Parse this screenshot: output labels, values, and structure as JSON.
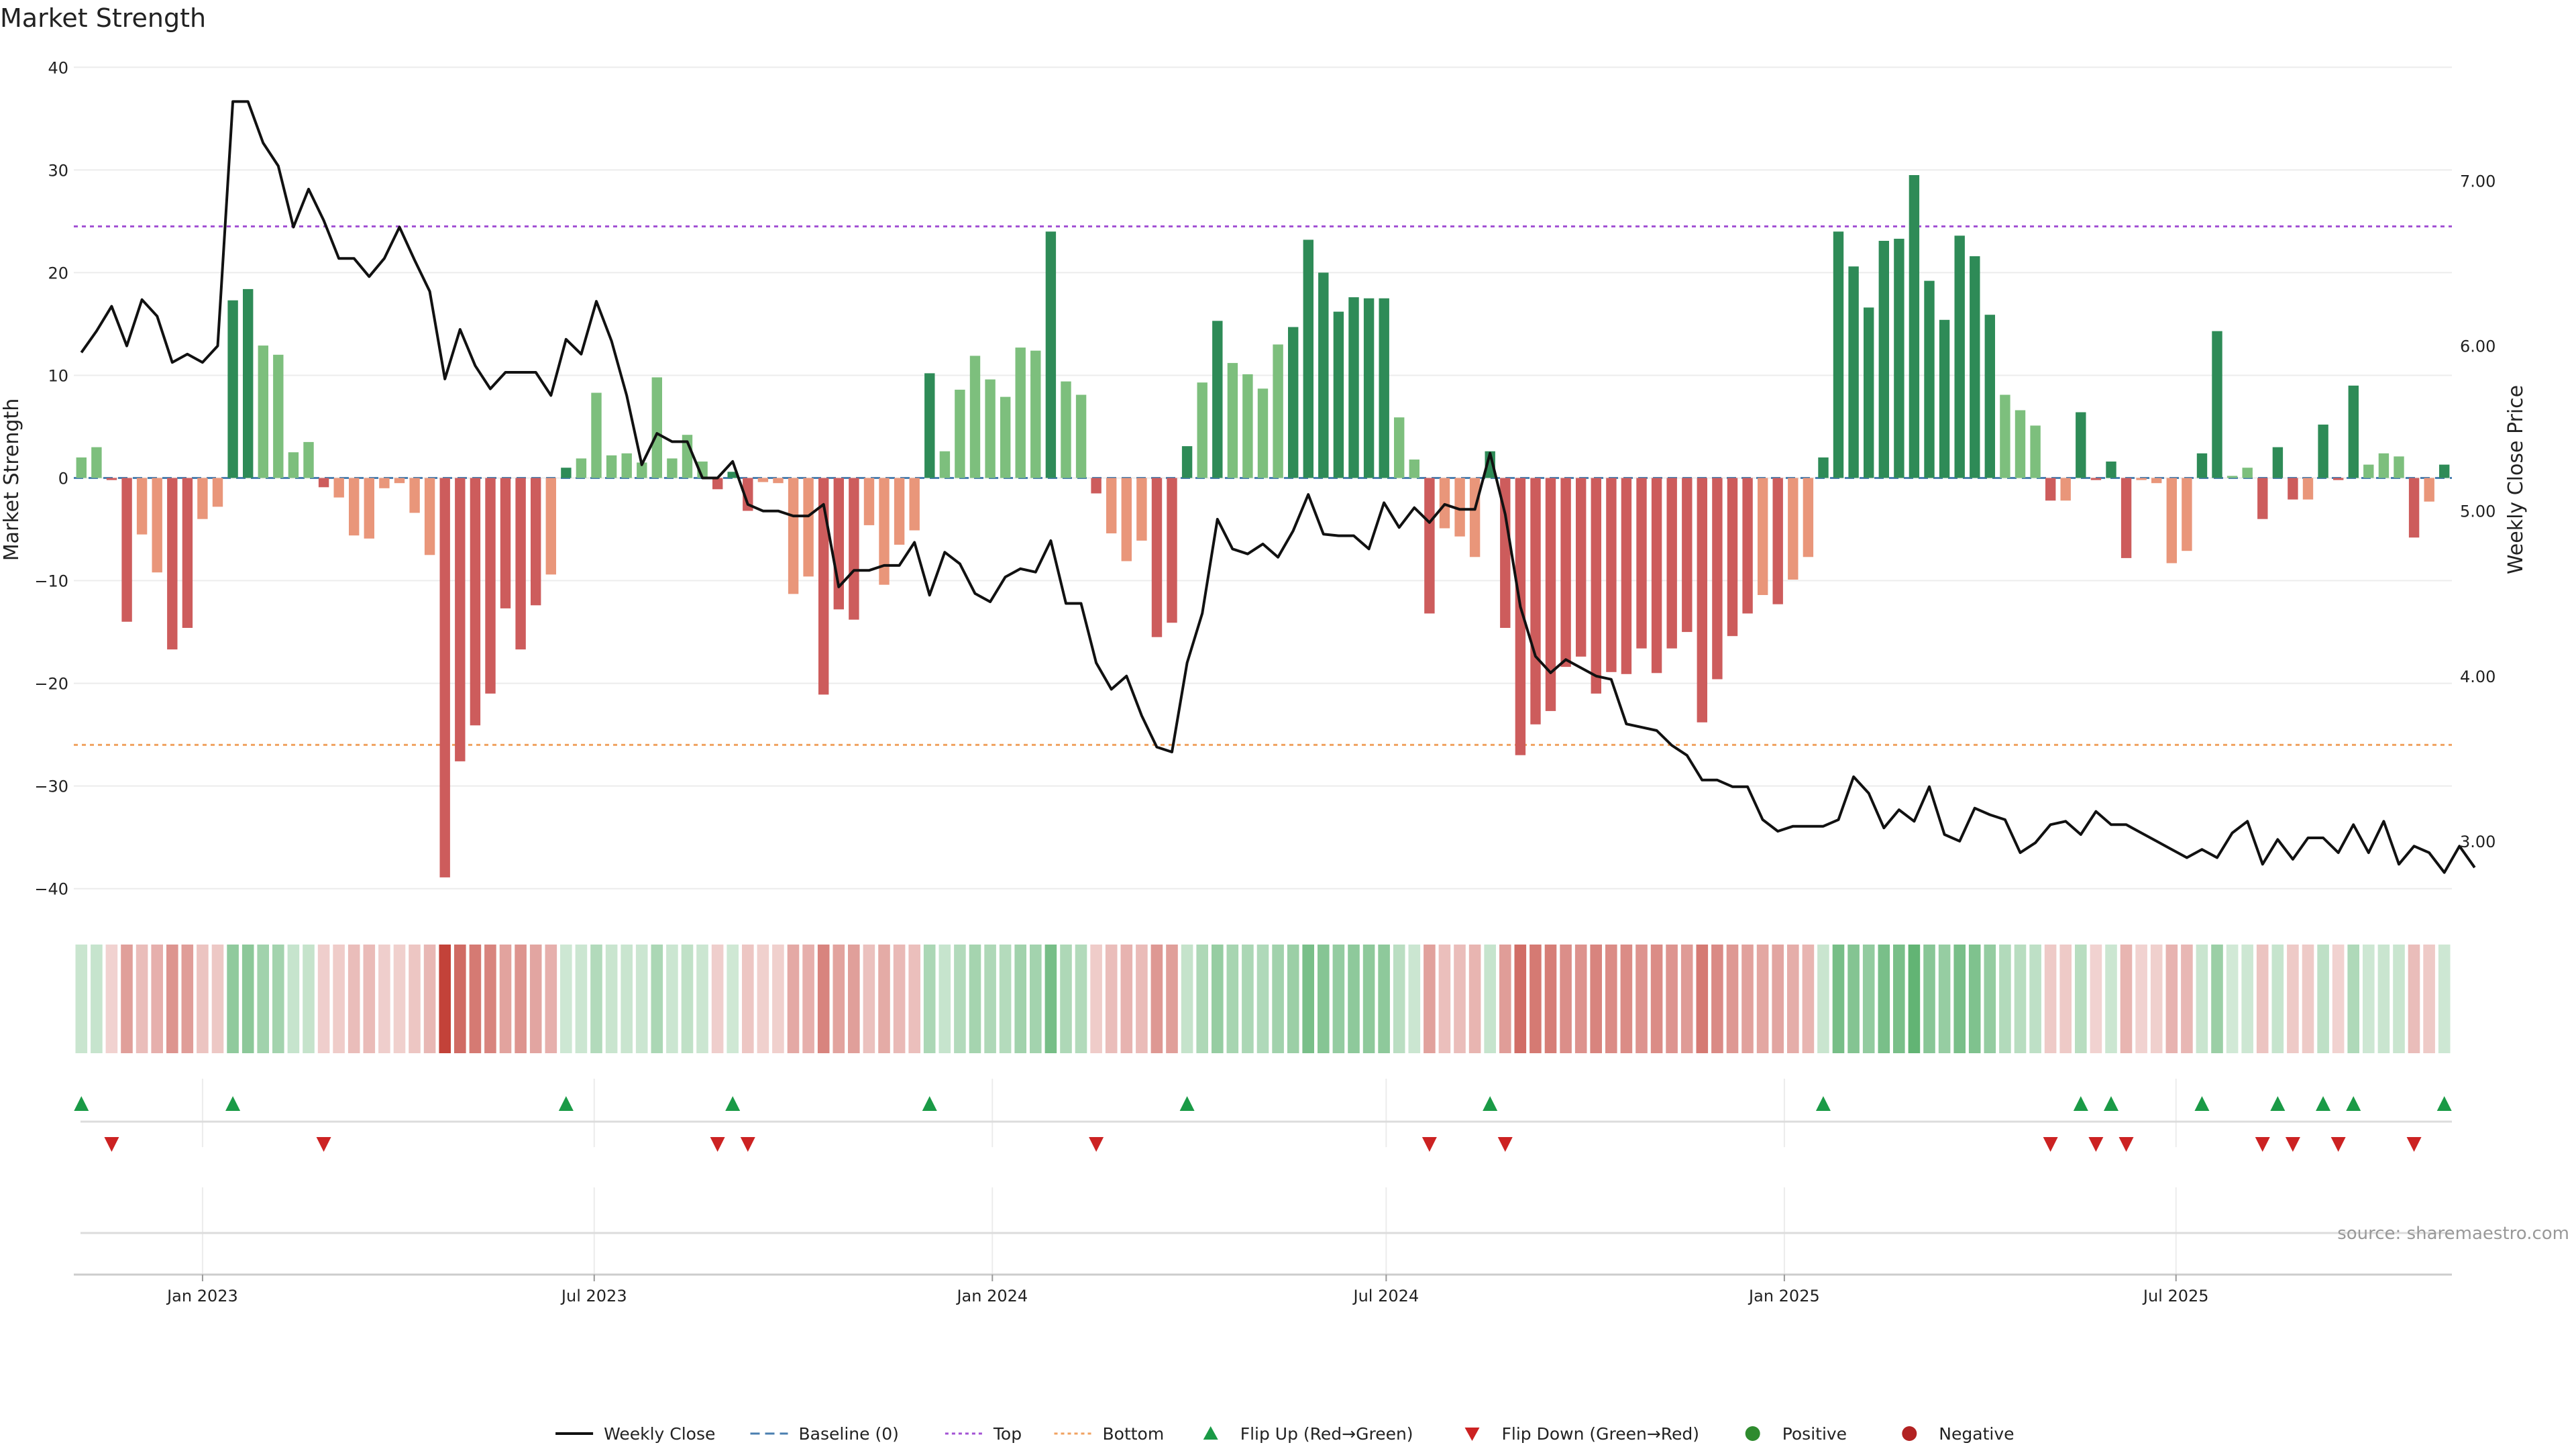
{
  "chart_data": {
    "type": "bar",
    "title": "Market Strength",
    "ylabel": "Market Strength",
    "y2label": "Weekly Close Price",
    "ylim": [
      -41,
      41
    ],
    "y2lim": [
      2.65,
      7.75
    ],
    "yticks": [
      "40",
      "30",
      "20",
      "10",
      "0",
      "−10",
      "−20",
      "−30",
      "−40"
    ],
    "y2ticks": [
      "7.00",
      "6.00",
      "5.00",
      "4.00",
      "3.00"
    ],
    "x_start": "2022-11-06",
    "x_interval_days": 7,
    "x_tick_labels": [
      "Jan 2023",
      "Jul 2023",
      "Jan 2024",
      "Jul 2024",
      "Jan 2025",
      "Jul 2025"
    ],
    "x_tick_dates": [
      "2023-01-01",
      "2023-07-01",
      "2024-01-01",
      "2024-07-01",
      "2025-01-01",
      "2025-07-01"
    ],
    "top_line": 24.5,
    "bottom_line": -26,
    "strength": [
      2,
      3,
      -0.2,
      -14,
      -5.5,
      -9.2,
      -16.7,
      -14.6,
      -4,
      -2.8,
      17.3,
      18.4,
      12.9,
      12,
      2.5,
      3.5,
      -0.9,
      -1.9,
      -5.6,
      -5.9,
      -1,
      -0.5,
      -3.4,
      -7.5,
      -38.9,
      -27.6,
      -24.1,
      -21,
      -12.7,
      -16.7,
      -12.4,
      -9.4,
      1,
      1.9,
      8.3,
      2.2,
      2.4,
      1.5,
      9.8,
      1.9,
      4.2,
      1.6,
      -1.1,
      0.6,
      -3.2,
      -0.4,
      -0.5,
      -11.3,
      -9.6,
      -21.1,
      -12.8,
      -13.8,
      -4.6,
      -10.4,
      -6.5,
      -5.1,
      10.2,
      2.6,
      8.6,
      11.9,
      9.6,
      7.9,
      12.7,
      12.4,
      24,
      9.4,
      8.1,
      -1.5,
      -5.4,
      -8.1,
      -6.1,
      -15.5,
      -14.1,
      3.1,
      9.3,
      15.3,
      11.2,
      10.1,
      8.7,
      13,
      14.7,
      23.2,
      20,
      16.2,
      17.6,
      17.5,
      17.5,
      5.9,
      1.8,
      -13.2,
      -4.9,
      -5.7,
      -7.7,
      2.6,
      -14.6,
      -27,
      -24,
      -22.7,
      -18.4,
      -17.4,
      -21,
      -18.9,
      -19.1,
      -16.6,
      -19,
      -16.6,
      -15,
      -23.8,
      -19.6,
      -15.4,
      -13.2,
      -11.4,
      -12.3,
      -9.9,
      -7.7,
      2,
      24,
      20.6,
      16.6,
      23.1,
      23.3,
      29.5,
      19.2,
      15.4,
      23.6,
      21.6,
      15.9,
      8.1,
      6.6,
      5.1,
      -2.2,
      -2.2,
      6.4,
      -0.2,
      1.6,
      -7.8,
      -0.2,
      -0.5,
      -8.3,
      -7.1,
      2.4,
      14.3,
      0.2,
      1,
      -4,
      3,
      -2.1,
      -2.1,
      5.2,
      -0.2,
      9,
      1.3,
      2.4,
      2.1,
      -5.8,
      -2.3,
      1.3
    ],
    "weekly_close": [
      5.96,
      6.09,
      6.24,
      6.0,
      6.28,
      6.18,
      5.9,
      5.95,
      5.9,
      6.0,
      7.48,
      7.48,
      7.23,
      7.09,
      6.72,
      6.95,
      6.76,
      6.53,
      6.53,
      6.42,
      6.53,
      6.72,
      6.52,
      6.33,
      5.8,
      6.1,
      5.88,
      5.74,
      5.84,
      5.84,
      5.84,
      5.7,
      6.04,
      5.95,
      6.27,
      6.03,
      5.7,
      5.28,
      5.47,
      5.42,
      5.42,
      5.2,
      5.2,
      5.3,
      5.04,
      5.0,
      5.0,
      4.97,
      4.97,
      5.04,
      4.54,
      4.64,
      4.64,
      4.67,
      4.67,
      4.81,
      4.49,
      4.75,
      4.68,
      4.5,
      4.45,
      4.6,
      4.65,
      4.63,
      4.82,
      4.44,
      4.44,
      4.08,
      3.92,
      4.0,
      3.76,
      3.57,
      3.54,
      4.08,
      4.38,
      4.95,
      4.77,
      4.74,
      4.8,
      4.72,
      4.88,
      5.1,
      4.86,
      4.85,
      4.85,
      4.77,
      5.05,
      4.9,
      5.02,
      4.93,
      5.04,
      5.01,
      5.01,
      5.35,
      4.98,
      4.42,
      4.12,
      4.02,
      4.1,
      4.05,
      4.0,
      3.98,
      3.71,
      3.69,
      3.67,
      3.58,
      3.52,
      3.37,
      3.37,
      3.33,
      3.33,
      3.13,
      3.06,
      3.09,
      3.09,
      3.09,
      3.13,
      3.39,
      3.29,
      3.08,
      3.19,
      3.12,
      3.33,
      3.04,
      3.0,
      3.2,
      3.16,
      3.13,
      2.93,
      2.99,
      3.1,
      3.12,
      3.04,
      3.18,
      3.1,
      3.1,
      3.05,
      3.0,
      2.95,
      2.9,
      2.95,
      2.9,
      3.05,
      3.12,
      2.86,
      3.01,
      2.89,
      3.02,
      3.02,
      2.93,
      3.1,
      2.93,
      3.12,
      2.86,
      2.97,
      2.93,
      2.81,
      2.97,
      2.84
    ]
  },
  "legend": [
    {
      "label": "Weekly Close",
      "kind": "line",
      "color": "#111111"
    },
    {
      "label": "Baseline (0)",
      "kind": "dash",
      "color": "#4a7fb0"
    },
    {
      "label": "Top",
      "kind": "dot",
      "color": "#a352d4"
    },
    {
      "label": "Bottom",
      "kind": "dot",
      "color": "#f0a260"
    },
    {
      "label": "Flip Up (Red→Green)",
      "kind": "tri-up",
      "color": "#1a9a46"
    },
    {
      "label": "Flip Down (Green→Red)",
      "kind": "tri-down",
      "color": "#cc2222"
    },
    {
      "label": "Positive",
      "kind": "circle",
      "color": "#2e8b2e"
    },
    {
      "label": "Negative",
      "kind": "circle",
      "color": "#b22222"
    }
  ],
  "colors": {
    "strong_positive": "#2e8b57",
    "weak_positive": "#7dbf7d",
    "strong_negative": "#cd5c5c",
    "weak_negative": "#e9967a",
    "top_line": "#a352d4",
    "bottom_line": "#f0a260",
    "flip_up": "#1a9a46",
    "flip_down": "#cc2222"
  },
  "source": "source: sharemaestro.com"
}
